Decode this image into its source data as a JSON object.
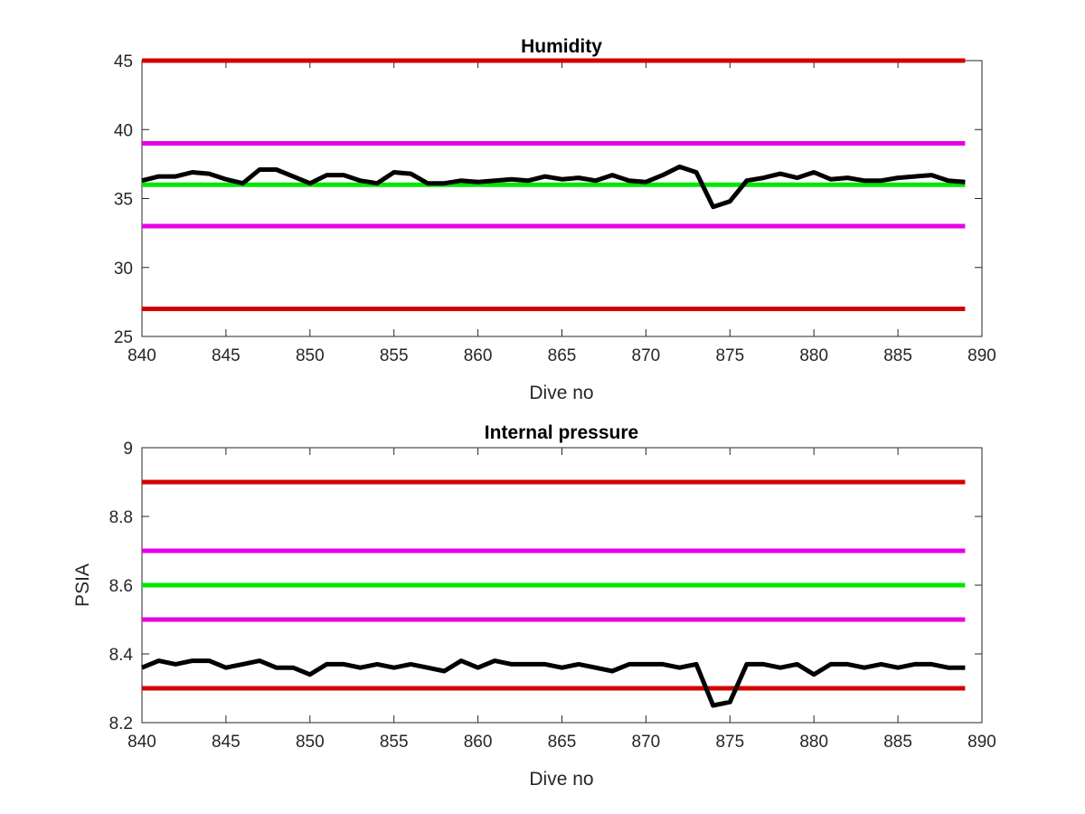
{
  "chart_data": [
    {
      "type": "line",
      "title": "Humidity",
      "xlabel": "Dive no",
      "ylabel": "",
      "xlim": [
        840,
        890
      ],
      "ylim": [
        25,
        45
      ],
      "xticks": [
        840,
        845,
        850,
        855,
        860,
        865,
        870,
        875,
        880,
        885,
        890
      ],
      "yticks": [
        25,
        30,
        35,
        40,
        45
      ],
      "grid": false,
      "thresholds": [
        {
          "value": 45,
          "color": "#d40000"
        },
        {
          "value": 39,
          "color": "#e600e6"
        },
        {
          "value": 36,
          "color": "#00e600"
        },
        {
          "value": 33,
          "color": "#e600e6"
        },
        {
          "value": 27,
          "color": "#d40000"
        }
      ],
      "series": [
        {
          "color": "#000000",
          "x": [
            840,
            841,
            842,
            843,
            844,
            845,
            846,
            847,
            848,
            849,
            850,
            851,
            852,
            853,
            854,
            855,
            856,
            857,
            858,
            859,
            860,
            861,
            862,
            863,
            864,
            865,
            866,
            867,
            868,
            869,
            870,
            871,
            872,
            873,
            874,
            875,
            876,
            877,
            878,
            879,
            880,
            881,
            882,
            883,
            884,
            885,
            886,
            887,
            888,
            889
          ],
          "values": [
            36.3,
            36.6,
            36.6,
            36.9,
            36.8,
            36.4,
            36.1,
            37.1,
            37.1,
            36.6,
            36.1,
            36.7,
            36.7,
            36.3,
            36.1,
            36.9,
            36.8,
            36.1,
            36.1,
            36.3,
            36.2,
            36.3,
            36.4,
            36.3,
            36.6,
            36.4,
            36.5,
            36.3,
            36.7,
            36.3,
            36.2,
            36.7,
            37.3,
            36.9,
            34.4,
            34.8,
            36.3,
            36.5,
            36.8,
            36.5,
            36.9,
            36.4,
            36.5,
            36.3,
            36.3,
            36.5,
            36.6,
            36.7,
            36.3,
            36.2
          ]
        }
      ]
    },
    {
      "type": "line",
      "title": "Internal pressure",
      "xlabel": "Dive no",
      "ylabel": "PSIA",
      "xlim": [
        840,
        890
      ],
      "ylim": [
        8.2,
        9
      ],
      "xticks": [
        840,
        845,
        850,
        855,
        860,
        865,
        870,
        875,
        880,
        885,
        890
      ],
      "yticks": [
        "8.2",
        "8.4",
        "8.6",
        "8.8",
        "9"
      ],
      "grid": false,
      "thresholds": [
        {
          "value": 8.9,
          "color": "#d40000"
        },
        {
          "value": 8.7,
          "color": "#e600e6"
        },
        {
          "value": 8.6,
          "color": "#00e600"
        },
        {
          "value": 8.5,
          "color": "#e600e6"
        },
        {
          "value": 8.3,
          "color": "#d40000"
        }
      ],
      "series": [
        {
          "color": "#000000",
          "x": [
            840,
            841,
            842,
            843,
            844,
            845,
            846,
            847,
            848,
            849,
            850,
            851,
            852,
            853,
            854,
            855,
            856,
            857,
            858,
            859,
            860,
            861,
            862,
            863,
            864,
            865,
            866,
            867,
            868,
            869,
            870,
            871,
            872,
            873,
            874,
            875,
            876,
            877,
            878,
            879,
            880,
            881,
            882,
            883,
            884,
            885,
            886,
            887,
            888,
            889
          ],
          "values": [
            8.36,
            8.38,
            8.37,
            8.38,
            8.38,
            8.36,
            8.37,
            8.38,
            8.36,
            8.36,
            8.34,
            8.37,
            8.37,
            8.36,
            8.37,
            8.36,
            8.37,
            8.36,
            8.35,
            8.38,
            8.36,
            8.38,
            8.37,
            8.37,
            8.37,
            8.36,
            8.37,
            8.36,
            8.35,
            8.37,
            8.37,
            8.37,
            8.36,
            8.37,
            8.25,
            8.26,
            8.37,
            8.37,
            8.36,
            8.37,
            8.34,
            8.37,
            8.37,
            8.36,
            8.37,
            8.36,
            8.37,
            8.37,
            8.36,
            8.36
          ]
        }
      ]
    }
  ]
}
